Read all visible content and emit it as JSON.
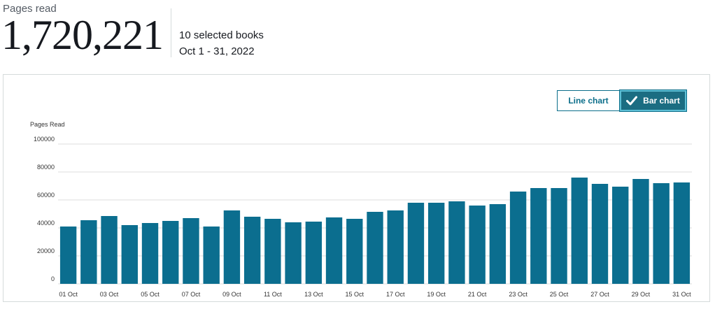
{
  "summary": {
    "label": "Pages read",
    "value": "1,720,221",
    "books": "10 selected books",
    "range": "Oct 1 - 31, 2022"
  },
  "toggles": {
    "line_label": "Line chart",
    "bar_label": "Bar chart",
    "selected": "bar"
  },
  "colors": {
    "bar": "#0b6e8f",
    "gridline": "#dddddd",
    "accent": "#1b6d82"
  },
  "chart_data": {
    "type": "bar",
    "ylabel": "Pages Read",
    "ylim": [
      0,
      100000
    ],
    "yticks": [
      0,
      20000,
      40000,
      60000,
      80000,
      100000
    ],
    "grid": true,
    "categories": [
      "01 Oct",
      "02 Oct",
      "03 Oct",
      "04 Oct",
      "05 Oct",
      "06 Oct",
      "07 Oct",
      "08 Oct",
      "09 Oct",
      "10 Oct",
      "11 Oct",
      "12 Oct",
      "13 Oct",
      "14 Oct",
      "15 Oct",
      "16 Oct",
      "17 Oct",
      "18 Oct",
      "19 Oct",
      "20 Oct",
      "21 Oct",
      "22 Oct",
      "23 Oct",
      "24 Oct",
      "25 Oct",
      "26 Oct",
      "27 Oct",
      "28 Oct",
      "29 Oct",
      "30 Oct",
      "31 Oct"
    ],
    "xtick_labels": [
      "01 Oct",
      "03 Oct",
      "05 Oct",
      "07 Oct",
      "09 Oct",
      "11 Oct",
      "13 Oct",
      "15 Oct",
      "17 Oct",
      "19 Oct",
      "21 Oct",
      "23 Oct",
      "25 Oct",
      "27 Oct",
      "29 Oct",
      "31 Oct"
    ],
    "values": [
      41000,
      45500,
      48500,
      42000,
      43500,
      45000,
      47000,
      41000,
      52500,
      48000,
      46500,
      44000,
      44500,
      47500,
      46500,
      51500,
      52500,
      58000,
      58000,
      59000,
      56000,
      57000,
      66000,
      68500,
      68500,
      76000,
      71500,
      69500,
      75000,
      72000,
      72500
    ]
  }
}
